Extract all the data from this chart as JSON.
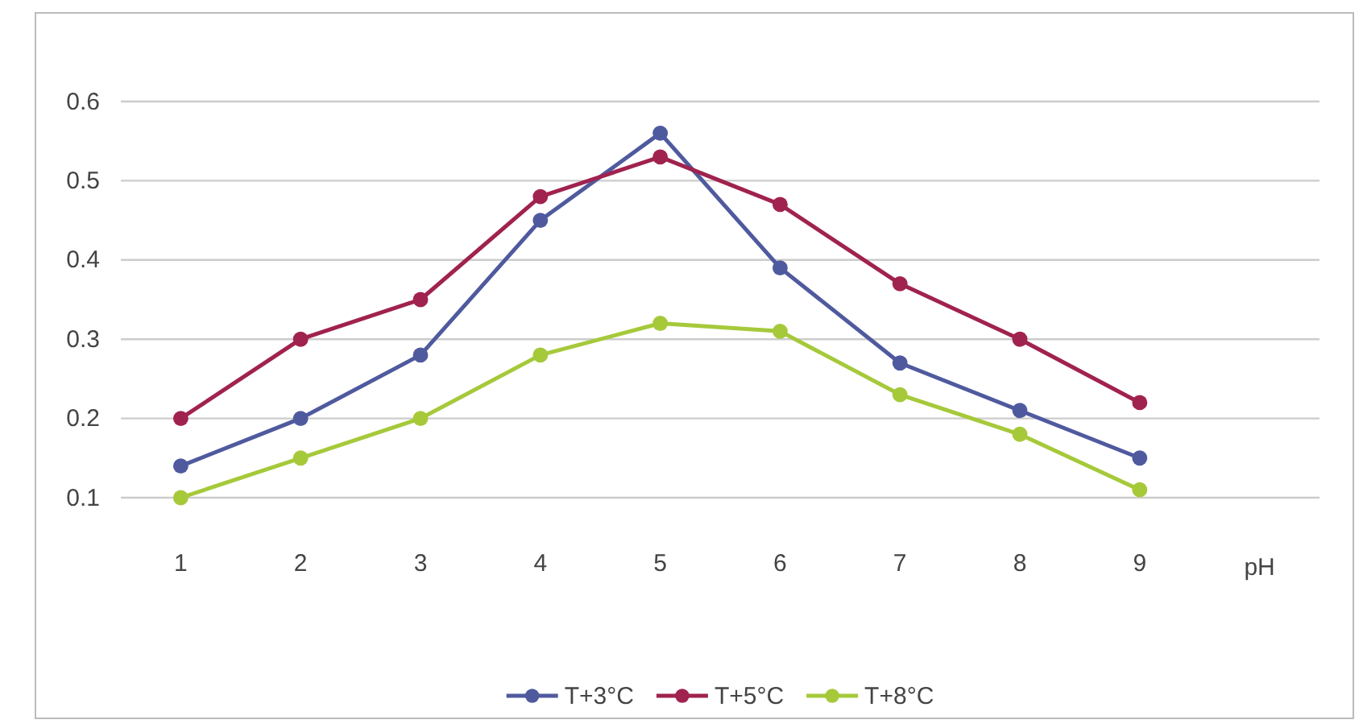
{
  "chart_data": {
    "type": "line",
    "xlabel": "pH",
    "categories": [
      "1",
      "2",
      "3",
      "4",
      "5",
      "6",
      "7",
      "8",
      "9"
    ],
    "series": [
      {
        "name": "T+3°C",
        "color": "#4f5a9e",
        "values": [
          0.14,
          0.2,
          0.28,
          0.45,
          0.56,
          0.39,
          0.27,
          0.21,
          0.15
        ]
      },
      {
        "name": "T+5°C",
        "color": "#a0224f",
        "values": [
          0.2,
          0.3,
          0.35,
          0.48,
          0.53,
          0.47,
          0.37,
          0.3,
          0.22
        ]
      },
      {
        "name": "T+8°C",
        "color": "#a6c93a",
        "values": [
          0.1,
          0.15,
          0.2,
          0.28,
          0.32,
          0.31,
          0.23,
          0.18,
          0.11
        ]
      }
    ],
    "ylim": [
      0.1,
      0.6
    ],
    "yticks": [
      0.1,
      0.2,
      0.3,
      0.4,
      0.5,
      0.6
    ],
    "grid": "y",
    "legend": "bottom",
    "marker": "circle",
    "line_style": "solid"
  }
}
